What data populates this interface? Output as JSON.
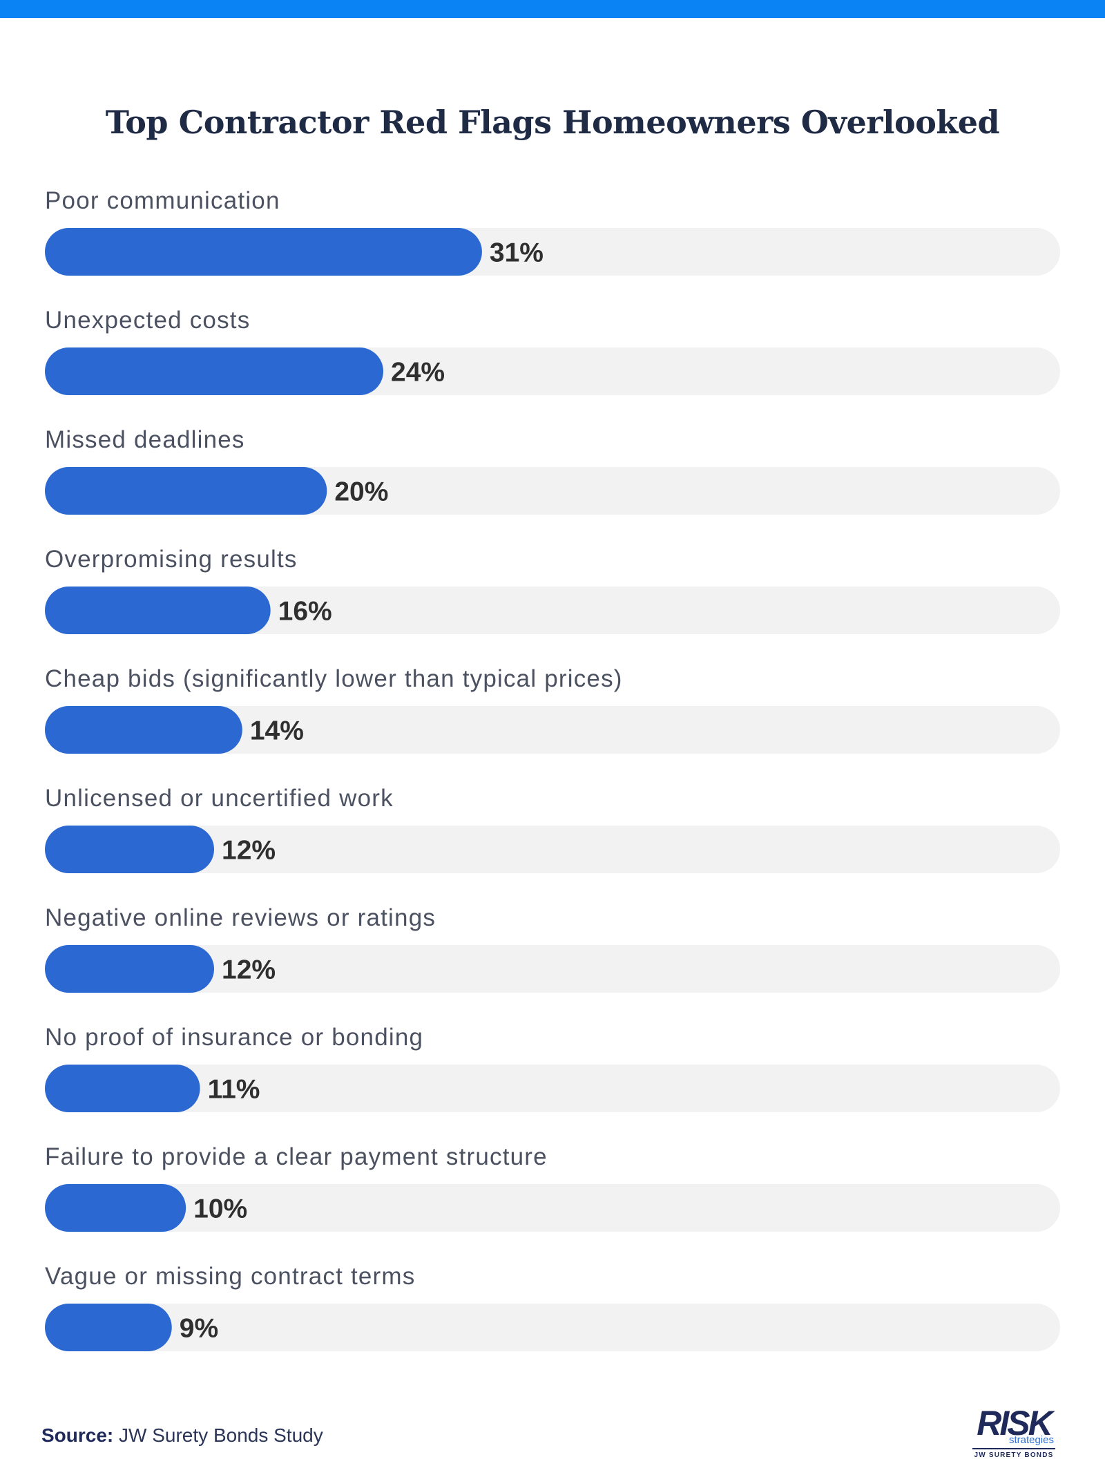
{
  "chart_data": {
    "type": "bar",
    "orientation": "horizontal",
    "title": "Top Contractor Red Flags Homeowners Overlooked",
    "categories": [
      "Poor communication",
      "Unexpected costs",
      "Missed deadlines",
      "Overpromising results",
      "Cheap bids (significantly lower than typical prices)",
      "Unlicensed or uncertified work",
      "Negative online reviews or ratings",
      "No proof of insurance or bonding",
      "Failure to provide a clear payment structure",
      "Vague or missing contract terms"
    ],
    "values": [
      31,
      24,
      20,
      16,
      14,
      12,
      12,
      11,
      10,
      9
    ],
    "value_labels": [
      "31%",
      "24%",
      "20%",
      "16%",
      "14%",
      "12%",
      "12%",
      "11%",
      "10%",
      "9%"
    ],
    "xlim": [
      0,
      72
    ],
    "grid": false,
    "legend": "none"
  },
  "colors": {
    "bar_fill": "#2B68D1",
    "bar_track": "#F2F2F2",
    "top_bar": "#0A84F5",
    "title": "#1F2A44"
  },
  "source": {
    "label": "Source:",
    "text": " JW Surety Bonds Study"
  },
  "logo": {
    "main": "RISK",
    "sub": "strategies",
    "tagline": "JW SURETY BONDS"
  }
}
